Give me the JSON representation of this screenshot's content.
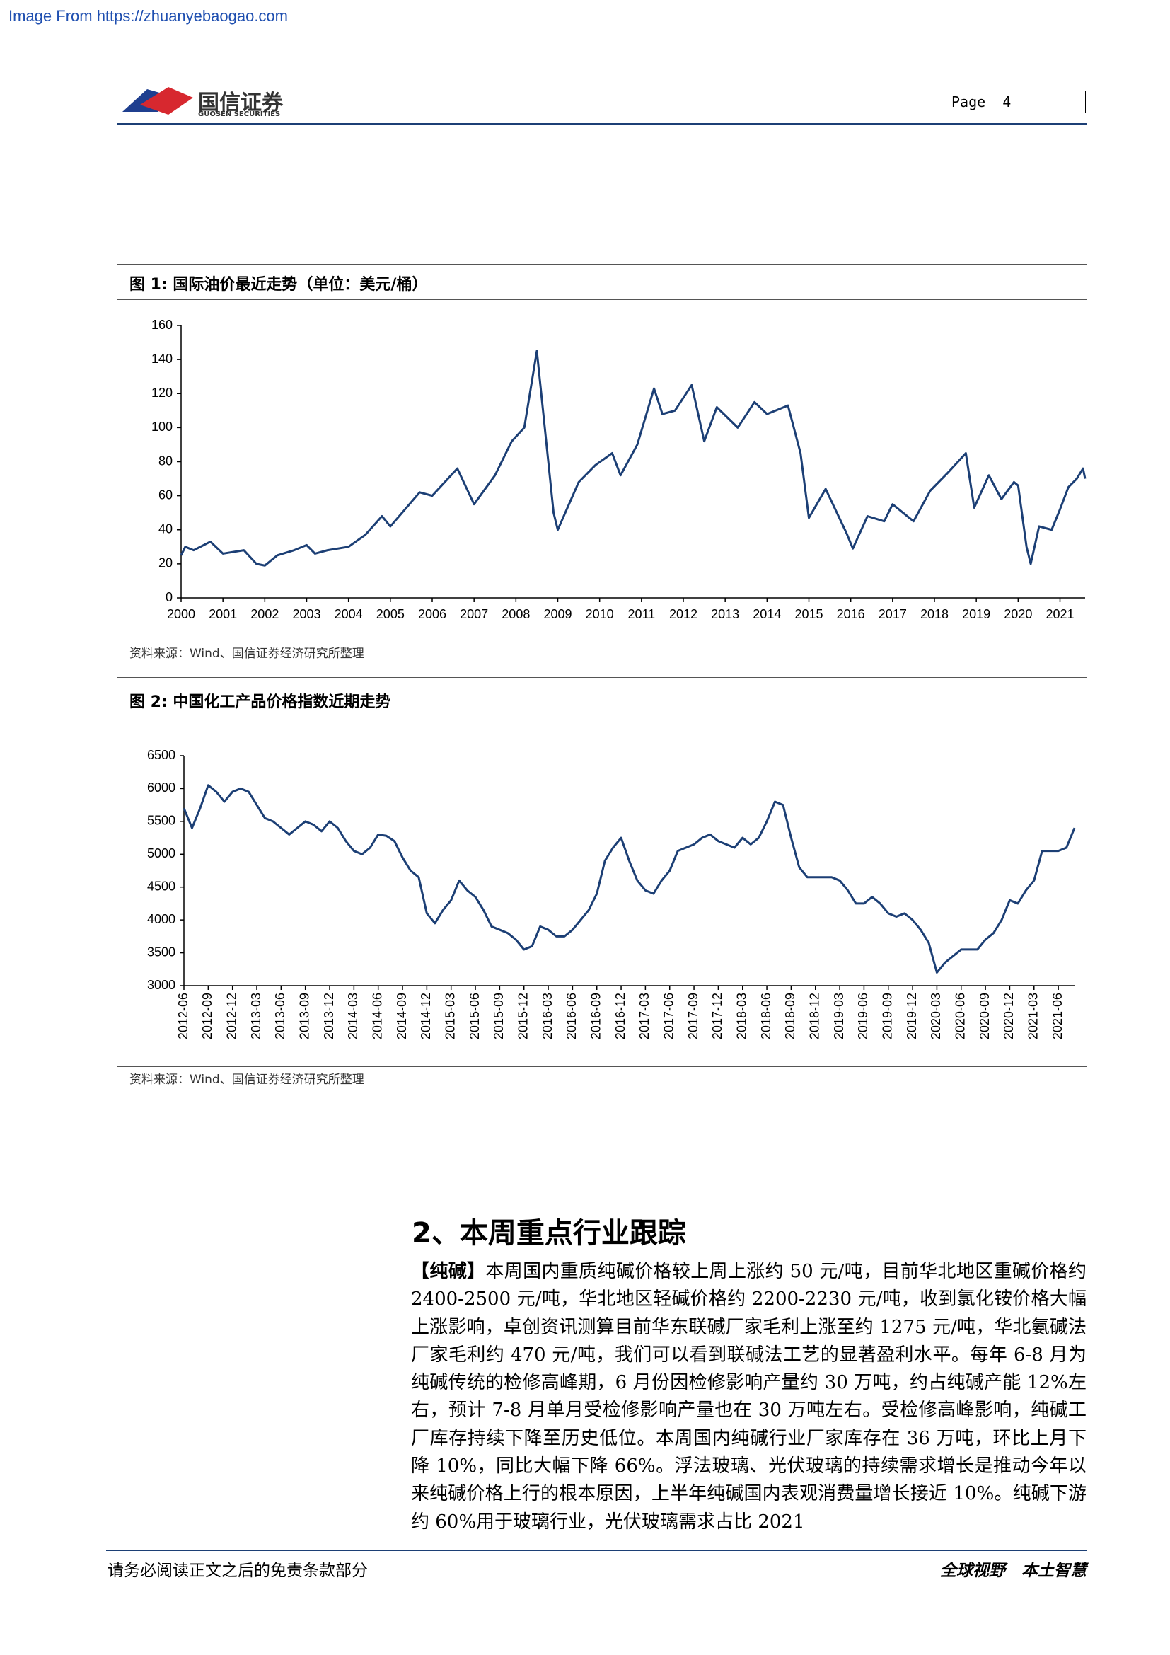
{
  "watermark": "Image From https://zhuanyebaogao.com",
  "header": {
    "logo_cn": "国信证券",
    "logo_en": "GUOSEN SECURITIES",
    "page": "Page  4"
  },
  "chart_data": [
    {
      "type": "line",
      "title": "图 1:  国际油价最近走势（单位：美元/桶）",
      "source": "资料来源：Wind、国信证券经济研究所整理",
      "xlim": [
        2000,
        2021.6
      ],
      "xticks": [
        2000,
        2001,
        2002,
        2003,
        2004,
        2005,
        2006,
        2007,
        2008,
        2009,
        2010,
        2011,
        2012,
        2013,
        2014,
        2015,
        2016,
        2017,
        2018,
        2019,
        2020,
        2021
      ],
      "ylim": [
        0,
        160
      ],
      "yticks": [
        0,
        20,
        40,
        60,
        80,
        100,
        120,
        140,
        160
      ],
      "series": [
        {
          "color": "#1c3f75",
          "x": [
            2000.0,
            2000.1,
            2000.3,
            2000.7,
            2001.0,
            2001.5,
            2001.8,
            2002.0,
            2002.3,
            2002.7,
            2003.0,
            2003.2,
            2003.5,
            2004.0,
            2004.4,
            2004.8,
            2005.0,
            2005.7,
            2006.0,
            2006.6,
            2007.0,
            2007.5,
            2007.9,
            2008.2,
            2008.5,
            2008.9,
            2009.0,
            2009.5,
            2009.9,
            2010.3,
            2010.5,
            2010.9,
            2011.3,
            2011.5,
            2011.8,
            2012.2,
            2012.5,
            2012.8,
            2013.3,
            2013.7,
            2014.0,
            2014.5,
            2014.8,
            2015.0,
            2015.4,
            2015.9,
            2016.05,
            2016.4,
            2016.8,
            2017.0,
            2017.5,
            2017.9,
            2018.3,
            2018.75,
            2018.95,
            2019.3,
            2019.6,
            2019.9,
            2020.0,
            2020.2,
            2020.3,
            2020.5,
            2020.8,
            2021.0,
            2021.2,
            2021.4,
            2021.55,
            2021.6
          ],
          "values": [
            25,
            30,
            28,
            33,
            26,
            28,
            20,
            19,
            25,
            28,
            31,
            26,
            28,
            30,
            37,
            48,
            42,
            62,
            60,
            76,
            55,
            72,
            92,
            100,
            145,
            50,
            40,
            68,
            78,
            85,
            72,
            90,
            123,
            108,
            110,
            125,
            92,
            112,
            100,
            115,
            108,
            113,
            85,
            47,
            64,
            38,
            29,
            48,
            45,
            55,
            45,
            63,
            73,
            85,
            53,
            72,
            58,
            68,
            66,
            30,
            20,
            42,
            40,
            52,
            65,
            70,
            76,
            70
          ]
        }
      ]
    },
    {
      "type": "line",
      "title": "图 2:  中国化工产品价格指数近期走势",
      "source": "资料来源：Wind、国信证券经济研究所整理",
      "ylim": [
        3000,
        6500
      ],
      "yticks": [
        3000,
        3500,
        4000,
        4500,
        5000,
        5500,
        6000,
        6500
      ],
      "categories": [
        "2012-06",
        null,
        null,
        "2012-09",
        null,
        null,
        "2012-12",
        null,
        null,
        "2013-03",
        null,
        null,
        "2013-06",
        null,
        null,
        "2013-09",
        null,
        null,
        "2013-12",
        null,
        null,
        "2014-03",
        null,
        null,
        "2014-06",
        null,
        null,
        "2014-09",
        null,
        null,
        "2014-12",
        null,
        null,
        "2015-03",
        null,
        null,
        "2015-06",
        null,
        null,
        "2015-09",
        null,
        null,
        "2015-12",
        null,
        null,
        "2016-03",
        null,
        null,
        "2016-06",
        null,
        null,
        "2016-09",
        null,
        null,
        "2016-12",
        null,
        null,
        "2017-03",
        null,
        null,
        "2017-06",
        null,
        null,
        "2017-09",
        null,
        null,
        "2017-12",
        null,
        null,
        "2018-03",
        null,
        null,
        "2018-06",
        null,
        null,
        "2018-09",
        null,
        null,
        "2018-12",
        null,
        null,
        "2019-03",
        null,
        null,
        "2019-06",
        null,
        null,
        "2019-09",
        null,
        null,
        "2019-12",
        null,
        null,
        "2020-03",
        null,
        null,
        "2020-06",
        null,
        null,
        "2020-09",
        null,
        null,
        "2020-12",
        null,
        null,
        "2021-03",
        null,
        null,
        "2021-06",
        null,
        null
      ],
      "series": [
        {
          "color": "#1c3f75",
          "values": [
            5700,
            5400,
            5700,
            6050,
            5950,
            5800,
            5950,
            6000,
            5950,
            5750,
            5550,
            5500,
            5400,
            5300,
            5400,
            5500,
            5450,
            5350,
            5500,
            5400,
            5200,
            5050,
            5000,
            5100,
            5300,
            5280,
            5200,
            4950,
            4750,
            4650,
            4100,
            3950,
            4150,
            4300,
            4600,
            4450,
            4350,
            4150,
            3900,
            3850,
            3800,
            3700,
            3550,
            3600,
            3900,
            3850,
            3750,
            3750,
            3850,
            4000,
            4150,
            4400,
            4900,
            5100,
            5250,
            4900,
            4600,
            4450,
            4400,
            4600,
            4750,
            5050,
            5100,
            5150,
            5250,
            5300,
            5200,
            5150,
            5100,
            5250,
            5150,
            5250,
            5500,
            5800,
            5750,
            5250,
            4800,
            4650,
            4650,
            4650,
            4650,
            4600,
            4450,
            4250,
            4250,
            4350,
            4250,
            4100,
            4050,
            4100,
            4000,
            3850,
            3650,
            3200,
            3350,
            3450,
            3550,
            3550,
            3550,
            3700,
            3800,
            4000,
            4300,
            4250,
            4450,
            4600,
            5050,
            5050,
            5050,
            5100,
            5400
          ]
        }
      ]
    }
  ],
  "section": {
    "heading": "2、本周重点行业跟踪",
    "lead": "【纯碱】",
    "text": "本周国内重质纯碱价格较上周上涨约 50 元/吨，目前华北地区重碱价格约 2400-2500 元/吨，华北地区轻碱价格约 2200-2230 元/吨，收到氯化铵价格大幅上涨影响，卓创资讯测算目前华东联碱厂家毛利上涨至约 1275 元/吨，华北氨碱法厂家毛利约 470 元/吨，我们可以看到联碱法工艺的显著盈利水平。每年 6-8 月为纯碱传统的检修高峰期，6 月份因检修影响产量约 30 万吨，约占纯碱产能 12%左右，预计 7-8 月单月受检修影响产量也在 30 万吨左右。受检修高峰影响，纯碱工厂库存持续下降至历史低位。本周国内纯碱行业厂家库存在 36 万吨，环比上月下降 10%，同比大幅下降 66%。浮法玻璃、光伏玻璃的持续需求增长是推动今年以来纯碱价格上行的根本原因，上半年纯碱国内表观消费量增长接近 10%。纯碱下游约 60%用于玻璃行业，光伏玻璃需求占比 2021"
  },
  "footer": {
    "left": "请务必阅读正文之后的免责条款部分",
    "right": "全球视野　本土智慧"
  }
}
